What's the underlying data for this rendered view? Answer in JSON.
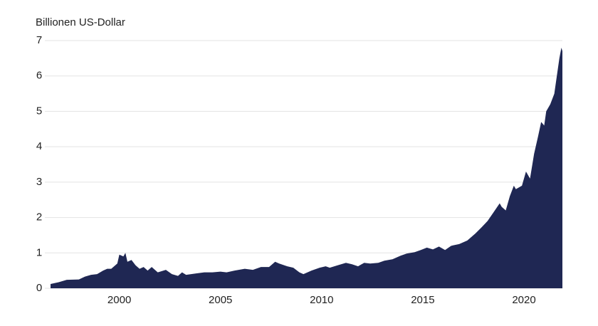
{
  "chart_data": {
    "type": "area",
    "y_label": "Billionen US-Dollar",
    "color": "#1f2753",
    "grid": true,
    "x": [
      1996.6,
      1997.0,
      1997.4,
      1998.0,
      1998.3,
      1998.6,
      1998.9,
      1999.2,
      1999.4,
      1999.6,
      1999.9,
      2000.0,
      2000.2,
      2000.3,
      2000.4,
      2000.6,
      2000.8,
      2001.0,
      2001.2,
      2001.4,
      2001.6,
      2001.9,
      2002.3,
      2002.6,
      2002.9,
      2003.1,
      2003.3,
      2003.8,
      2004.2,
      2004.6,
      2005.0,
      2005.3,
      2005.7,
      2006.2,
      2006.6,
      2007.0,
      2007.4,
      2007.7,
      2007.9,
      2008.3,
      2008.6,
      2008.9,
      2009.1,
      2009.5,
      2009.9,
      2010.2,
      2010.4,
      2010.8,
      2011.2,
      2011.5,
      2011.8,
      2012.1,
      2012.4,
      2012.8,
      2013.1,
      2013.5,
      2013.9,
      2014.2,
      2014.6,
      2014.9,
      2015.2,
      2015.5,
      2015.8,
      2016.1,
      2016.4,
      2016.8,
      2017.2,
      2017.6,
      2017.9,
      2018.2,
      2018.5,
      2018.8,
      2018.9,
      2019.1,
      2019.3,
      2019.5,
      2019.6,
      2019.9,
      2020.1,
      2020.3,
      2020.5,
      2020.7,
      2020.85,
      2021.0,
      2021.1,
      2021.3,
      2021.5,
      2021.65,
      2021.75,
      2021.85,
      2021.9
    ],
    "values": [
      0.12,
      0.17,
      0.24,
      0.25,
      0.33,
      0.38,
      0.4,
      0.5,
      0.55,
      0.55,
      0.7,
      0.95,
      0.9,
      1.0,
      0.75,
      0.8,
      0.65,
      0.55,
      0.6,
      0.5,
      0.6,
      0.45,
      0.52,
      0.4,
      0.35,
      0.45,
      0.38,
      0.42,
      0.45,
      0.45,
      0.47,
      0.45,
      0.5,
      0.55,
      0.52,
      0.6,
      0.6,
      0.75,
      0.7,
      0.62,
      0.58,
      0.45,
      0.4,
      0.5,
      0.58,
      0.62,
      0.58,
      0.65,
      0.72,
      0.68,
      0.62,
      0.72,
      0.7,
      0.72,
      0.78,
      0.82,
      0.92,
      0.98,
      1.02,
      1.08,
      1.15,
      1.1,
      1.18,
      1.08,
      1.2,
      1.25,
      1.35,
      1.55,
      1.72,
      1.9,
      2.15,
      2.4,
      2.3,
      2.2,
      2.6,
      2.9,
      2.8,
      2.9,
      3.3,
      3.1,
      3.8,
      4.3,
      4.7,
      4.6,
      5.0,
      5.2,
      5.5,
      6.1,
      6.5,
      6.8,
      6.7
    ],
    "xlim": [
      1996.6,
      2021.9
    ],
    "xticks": [
      2000,
      2005,
      2010,
      2015,
      2020
    ],
    "ylim": [
      0,
      7
    ],
    "yticks": [
      0,
      1,
      2,
      3,
      4,
      5,
      6,
      7
    ]
  }
}
